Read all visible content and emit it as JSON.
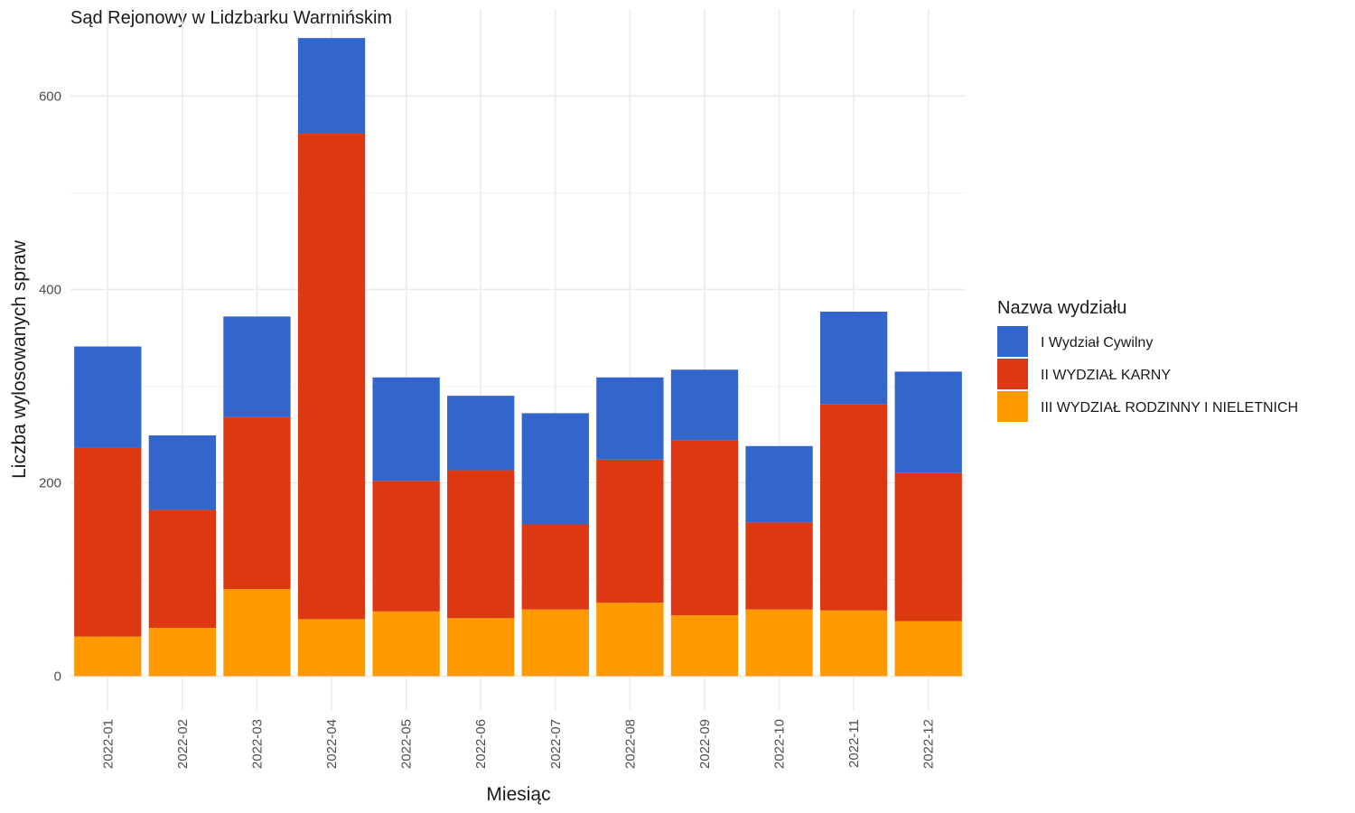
{
  "chart_data": {
    "type": "bar",
    "stacked": true,
    "title": "Sąd Rejonowy w Lidzbarku Warmińskim",
    "xlabel": "Miesiąc",
    "ylabel": "Liczba wylosowanych spraw",
    "ylim": [
      -35,
      690
    ],
    "yticks": [
      0,
      200,
      400,
      600
    ],
    "grid": true,
    "categories": [
      "2022-01",
      "2022-02",
      "2022-03",
      "2022-04",
      "2022-05",
      "2022-06",
      "2022-07",
      "2022-08",
      "2022-09",
      "2022-10",
      "2022-11",
      "2022-12"
    ],
    "legend": {
      "title": "Nazwa wydziału",
      "position": "right"
    },
    "series": [
      {
        "name": "III WYDZIAŁ RODZINNY I NIELETNICH",
        "color": "#FF9900",
        "values": [
          41,
          50,
          90,
          59,
          67,
          60,
          69,
          76,
          63,
          69,
          68,
          57
        ]
      },
      {
        "name": "II WYDZIAŁ KARNY",
        "color": "#DC3912",
        "values": [
          195,
          122,
          178,
          502,
          135,
          153,
          88,
          148,
          181,
          90,
          213,
          153
        ]
      },
      {
        "name": "I Wydział Cywilny",
        "color": "#3366CC",
        "values": [
          105,
          77,
          104,
          99,
          107,
          77,
          115,
          85,
          73,
          79,
          96,
          105
        ]
      }
    ]
  }
}
